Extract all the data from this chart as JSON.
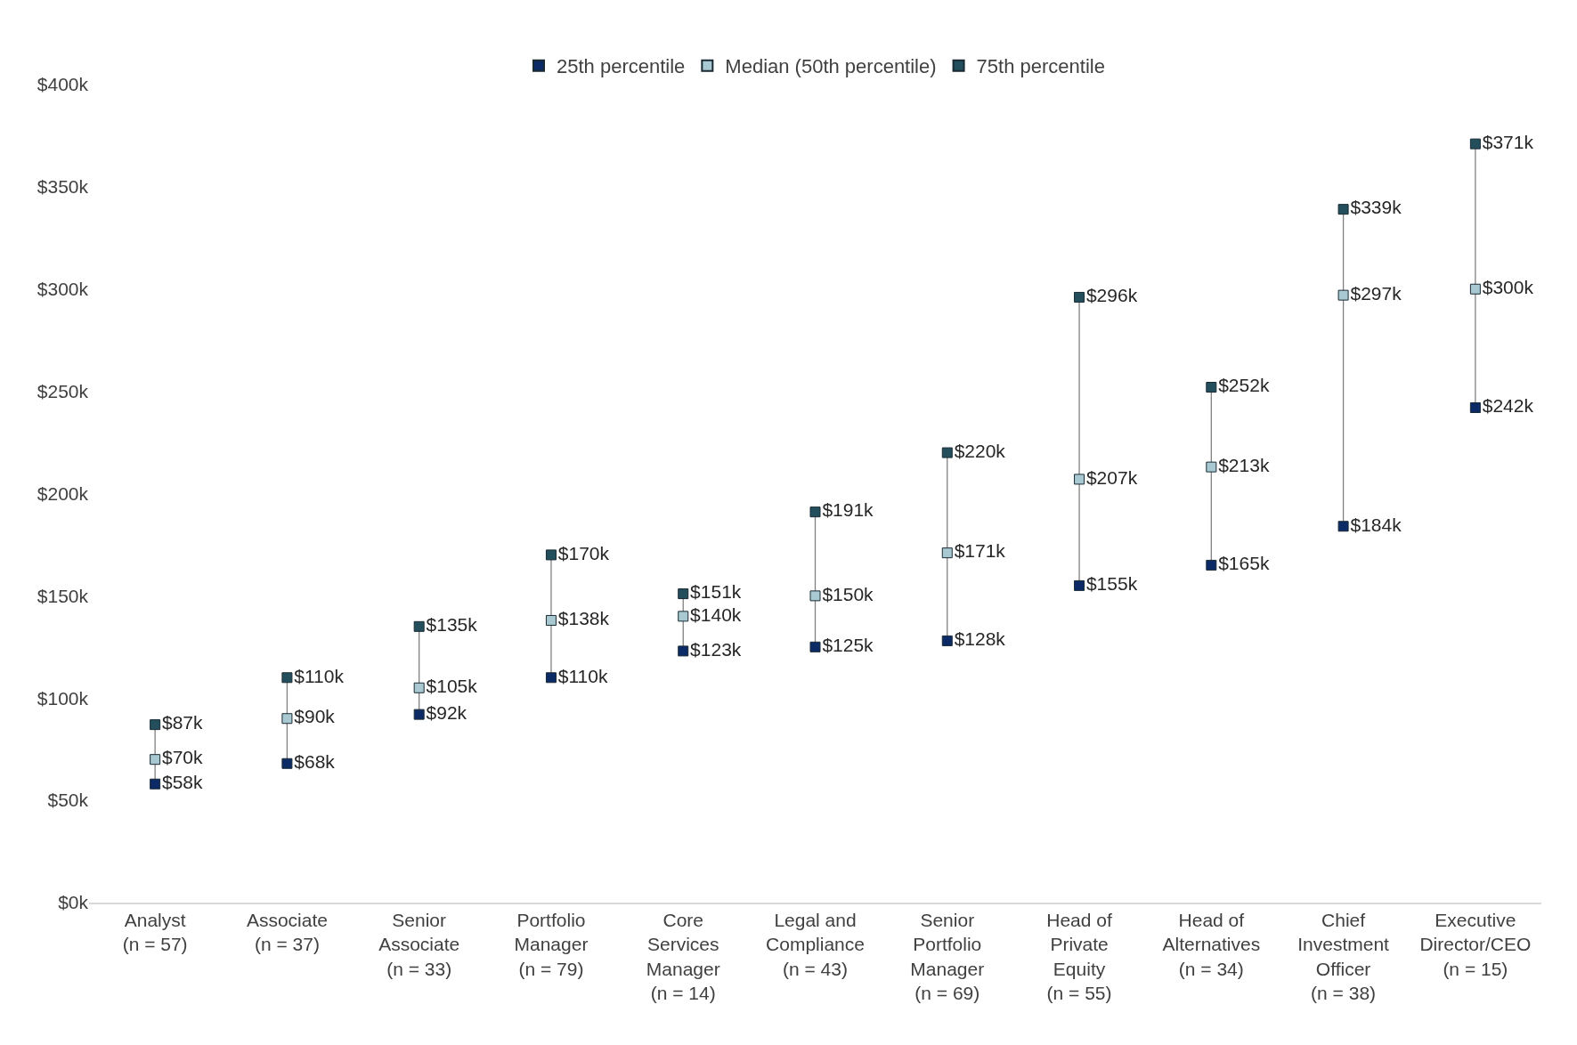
{
  "chart_data": {
    "type": "scatter",
    "categories": [
      "Analyst\n(n = 57)",
      "Associate\n(n = 37)",
      "Senior\nAssociate\n(n = 33)",
      "Portfolio\nManager\n(n = 79)",
      "Core\nServices\nManager\n(n = 14)",
      "Legal and\nCompliance\n(n = 43)",
      "Senior\nPortfolio\nManager\n(n = 69)",
      "Head of\nPrivate\nEquity\n(n = 55)",
      "Head of\nAlternatives\n(n = 34)",
      "Chief\nInvestment\nOfficer\n(n = 38)",
      "Executive\nDirector/CEO\n(n = 15)"
    ],
    "series": [
      {
        "name": "25th percentile",
        "color": "#0c2a66",
        "values": [
          58,
          68,
          92,
          110,
          123,
          125,
          128,
          155,
          165,
          184,
          242
        ],
        "value_labels": [
          "$58k",
          "$68k",
          "$92k",
          "$110k",
          "$123k",
          "$125k",
          "$128k",
          "$155k",
          "$165k",
          "$184k",
          "$242k"
        ]
      },
      {
        "name": "Median (50th percentile)",
        "color": "#a8c9d1",
        "values": [
          70,
          90,
          105,
          138,
          140,
          150,
          171,
          207,
          213,
          297,
          300
        ],
        "value_labels": [
          "$70k",
          "$90k",
          "$105k",
          "$138k",
          "$140k",
          "$150k",
          "$171k",
          "$207k",
          "$213k",
          "$297k",
          "$300k"
        ]
      },
      {
        "name": "75th percentile",
        "color": "#234f5c",
        "values": [
          87,
          110,
          135,
          170,
          151,
          191,
          220,
          296,
          252,
          339,
          371
        ],
        "value_labels": [
          "$87k",
          "$110k",
          "$135k",
          "$170k",
          "$151k",
          "$191k",
          "$220k",
          "$296k",
          "$252k",
          "$339k",
          "$371k"
        ]
      }
    ],
    "ylim": [
      0,
      400
    ],
    "yticks": [
      {
        "value": 0,
        "label": "$0k"
      },
      {
        "value": 50,
        "label": "$50k"
      },
      {
        "value": 100,
        "label": "$100k"
      },
      {
        "value": 150,
        "label": "$150k"
      },
      {
        "value": 200,
        "label": "$200k"
      },
      {
        "value": 250,
        "label": "$250k"
      },
      {
        "value": 300,
        "label": "$300k"
      },
      {
        "value": 350,
        "label": "$350k"
      },
      {
        "value": 400,
        "label": "$400k"
      }
    ],
    "marker": "square",
    "legend": "top"
  }
}
